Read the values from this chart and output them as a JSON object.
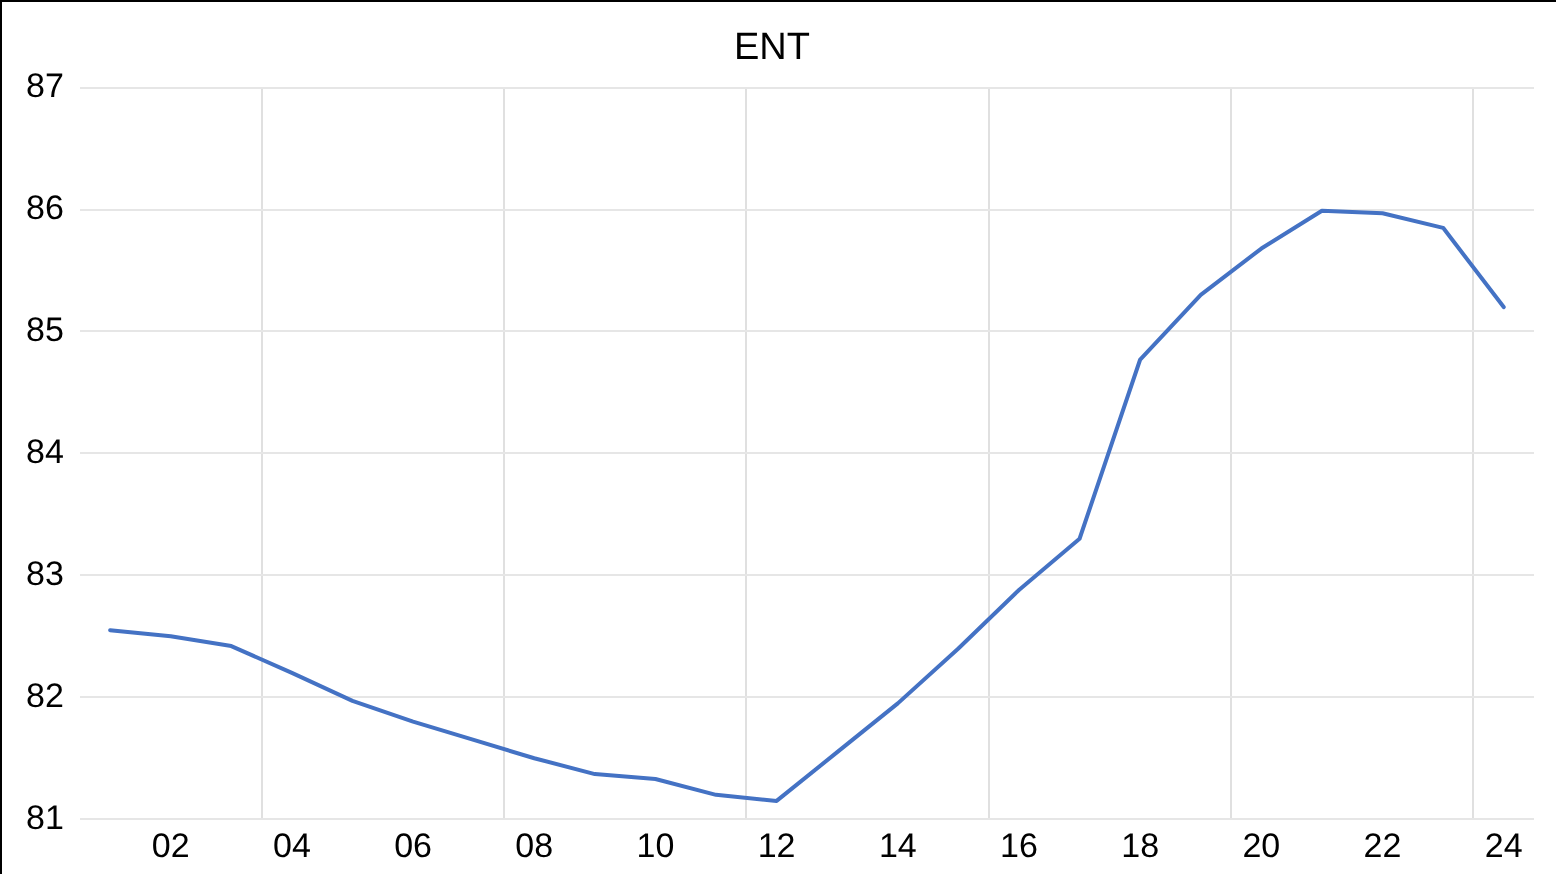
{
  "chart_data": {
    "type": "line",
    "title": "ENT",
    "categories": [
      null,
      "02",
      null,
      "04",
      null,
      "06",
      null,
      "08",
      null,
      "10",
      null,
      "12",
      null,
      "14",
      null,
      "16",
      null,
      "18",
      null,
      "20",
      null,
      "22",
      null,
      "24"
    ],
    "series": [
      {
        "color": "#4472c4",
        "values": [
          82.55,
          82.5,
          82.42,
          82.2,
          81.97,
          81.8,
          81.65,
          81.5,
          81.37,
          81.33,
          81.2,
          81.15,
          81.55,
          81.95,
          82.4,
          82.88,
          83.3,
          84.77,
          85.3,
          85.68,
          85.99,
          85.97,
          85.85,
          85.2
        ]
      }
    ],
    "ylim": [
      81,
      87
    ],
    "yticks": [
      81,
      82,
      83,
      84,
      85,
      86,
      87
    ],
    "grid": true,
    "legend": false,
    "marker": "none",
    "line_style": "solid"
  }
}
